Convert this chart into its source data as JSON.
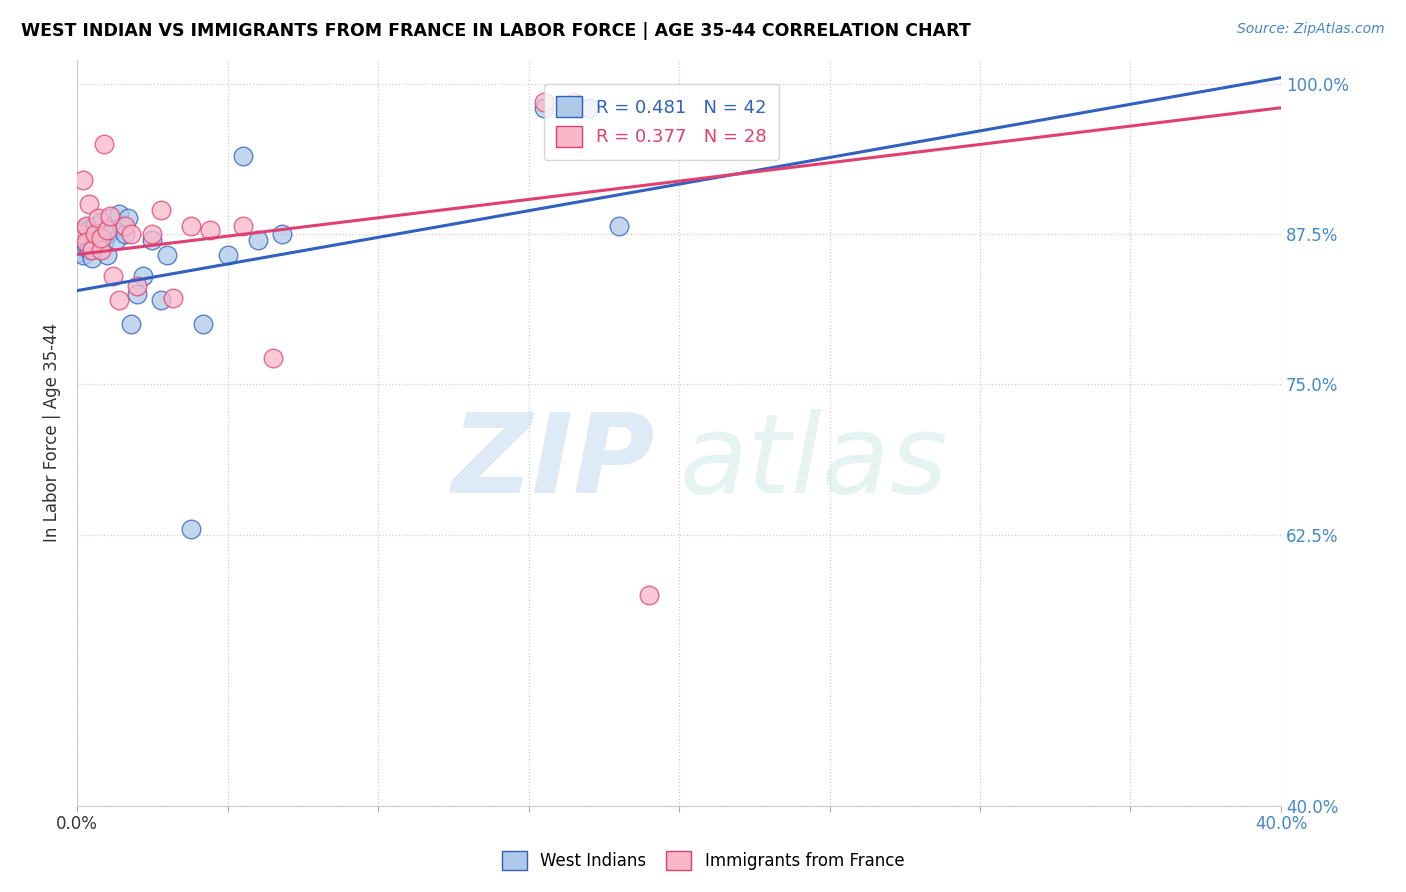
{
  "title": "WEST INDIAN VS IMMIGRANTS FROM FRANCE IN LABOR FORCE | AGE 35-44 CORRELATION CHART",
  "source": "Source: ZipAtlas.com",
  "ylabel": "In Labor Force | Age 35-44",
  "ylabel_right_values": [
    1.0,
    0.875,
    0.75,
    0.625,
    0.4
  ],
  "ylabel_right_labels": [
    "100.0%",
    "87.5%",
    "75.0%",
    "62.5%",
    "40.0%"
  ],
  "legend_label1": "West Indians",
  "legend_label2": "Immigrants from France",
  "R1": 0.481,
  "N1": 42,
  "R2": 0.377,
  "N2": 28,
  "color1": "#aec9e8",
  "color2": "#f9b8c8",
  "line_color1": "#3060c0",
  "line_color2": "#e04070",
  "west_indians_x": [
    0.001,
    0.001,
    0.002,
    0.002,
    0.003,
    0.003,
    0.003,
    0.004,
    0.004,
    0.004,
    0.005,
    0.005,
    0.005,
    0.006,
    0.006,
    0.007,
    0.008,
    0.009,
    0.01,
    0.01,
    0.011,
    0.012,
    0.013,
    0.014,
    0.015,
    0.016,
    0.017,
    0.018,
    0.02,
    0.022,
    0.025,
    0.028,
    0.03,
    0.038,
    0.042,
    0.05,
    0.055,
    0.06,
    0.068,
    0.155,
    0.17,
    0.18
  ],
  "west_indians_y": [
    0.87,
    0.86,
    0.875,
    0.858,
    0.88,
    0.872,
    0.865,
    0.878,
    0.868,
    0.862,
    0.876,
    0.864,
    0.855,
    0.882,
    0.87,
    0.875,
    0.885,
    0.868,
    0.875,
    0.858,
    0.888,
    0.878,
    0.87,
    0.892,
    0.882,
    0.875,
    0.888,
    0.8,
    0.825,
    0.84,
    0.87,
    0.82,
    0.858,
    0.63,
    0.8,
    0.858,
    0.94,
    0.87,
    0.875,
    0.98,
    0.98,
    0.882
  ],
  "france_x": [
    0.001,
    0.002,
    0.003,
    0.003,
    0.004,
    0.005,
    0.006,
    0.007,
    0.008,
    0.008,
    0.009,
    0.01,
    0.011,
    0.012,
    0.014,
    0.016,
    0.018,
    0.02,
    0.025,
    0.028,
    0.032,
    0.038,
    0.044,
    0.055,
    0.065,
    0.155,
    0.165,
    0.19
  ],
  "france_y": [
    0.875,
    0.92,
    0.882,
    0.868,
    0.9,
    0.862,
    0.875,
    0.888,
    0.862,
    0.872,
    0.95,
    0.878,
    0.89,
    0.84,
    0.82,
    0.882,
    0.875,
    0.832,
    0.875,
    0.895,
    0.822,
    0.882,
    0.878,
    0.882,
    0.772,
    0.985,
    0.985,
    0.575
  ],
  "line1_x": [
    0.0,
    0.4
  ],
  "line1_y": [
    0.828,
    1.005
  ],
  "line2_x": [
    0.0,
    0.4
  ],
  "line2_y": [
    0.858,
    0.98
  ],
  "xlim": [
    0.0,
    0.4
  ],
  "ylim": [
    0.4,
    1.02
  ],
  "xtick_vals": [
    0.0,
    0.05,
    0.1,
    0.15,
    0.2,
    0.25,
    0.3,
    0.35,
    0.4
  ]
}
